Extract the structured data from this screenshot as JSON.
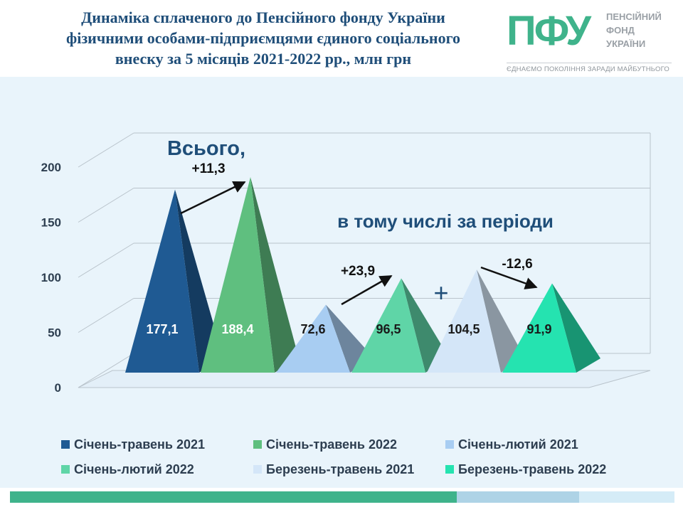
{
  "header": {
    "title_lines": [
      "Динаміка сплаченого до Пенсійного фонду України",
      "фізичними особами-підприємцями єдиного соціального",
      "внеску за 5 місяців 2021-2022 рр., млн грн"
    ]
  },
  "logo": {
    "mark": "ПФУ",
    "name_lines": [
      "ПЕНСІЙНИЙ",
      "ФОНД",
      "УКРАЇНИ"
    ],
    "slogan": "ЄДНАЄМО ПОКОЛІННЯ ЗАРАДИ МАЙБУТНЬОГО"
  },
  "chart_data": {
    "type": "bar",
    "bar_shape": "pyramid-3d",
    "categories": [
      "Січень-травень 2021",
      "Січень-травень 2022",
      "Січень-лютий 2021",
      "Січень-лютий 2022",
      "Березень-травень 2021",
      "Березень-травень 2022"
    ],
    "values": [
      177.1,
      188.4,
      72.6,
      96.5,
      104.5,
      91.9
    ],
    "value_labels": [
      "177,1",
      "188,4",
      "72,6",
      "96,5",
      "104,5",
      "91,9"
    ],
    "colors": [
      "#1f5a93",
      "#5fbf7f",
      "#a8cdf2",
      "#5fd5a7",
      "#d4e6f8",
      "#25e3b0"
    ],
    "label_colors": [
      "#ffffff",
      "#ffffff",
      "#1a1a1a",
      "#1a1a1a",
      "#1a1a1a",
      "#1a1a1a"
    ],
    "yticks": [
      0,
      50,
      100,
      150,
      200
    ],
    "ytick_labels": [
      "0",
      "50",
      "100",
      "150",
      "200"
    ],
    "ylim": [
      0,
      200
    ],
    "grid": true,
    "legend_position": "bottom",
    "annotations": {
      "total_label": "Всього,",
      "periods_label": "в тому числі за періоди",
      "plus_sign": "+",
      "changes": [
        {
          "from": 0,
          "to": 1,
          "label": "+11,3"
        },
        {
          "from": 2,
          "to": 3,
          "label": "+23,9"
        },
        {
          "from": 4,
          "to": 5,
          "label": "-12,6"
        }
      ]
    }
  },
  "footer": {
    "bar_colors": [
      "#3fb38b",
      "#aed3e6",
      "#d5ecf7"
    ]
  }
}
